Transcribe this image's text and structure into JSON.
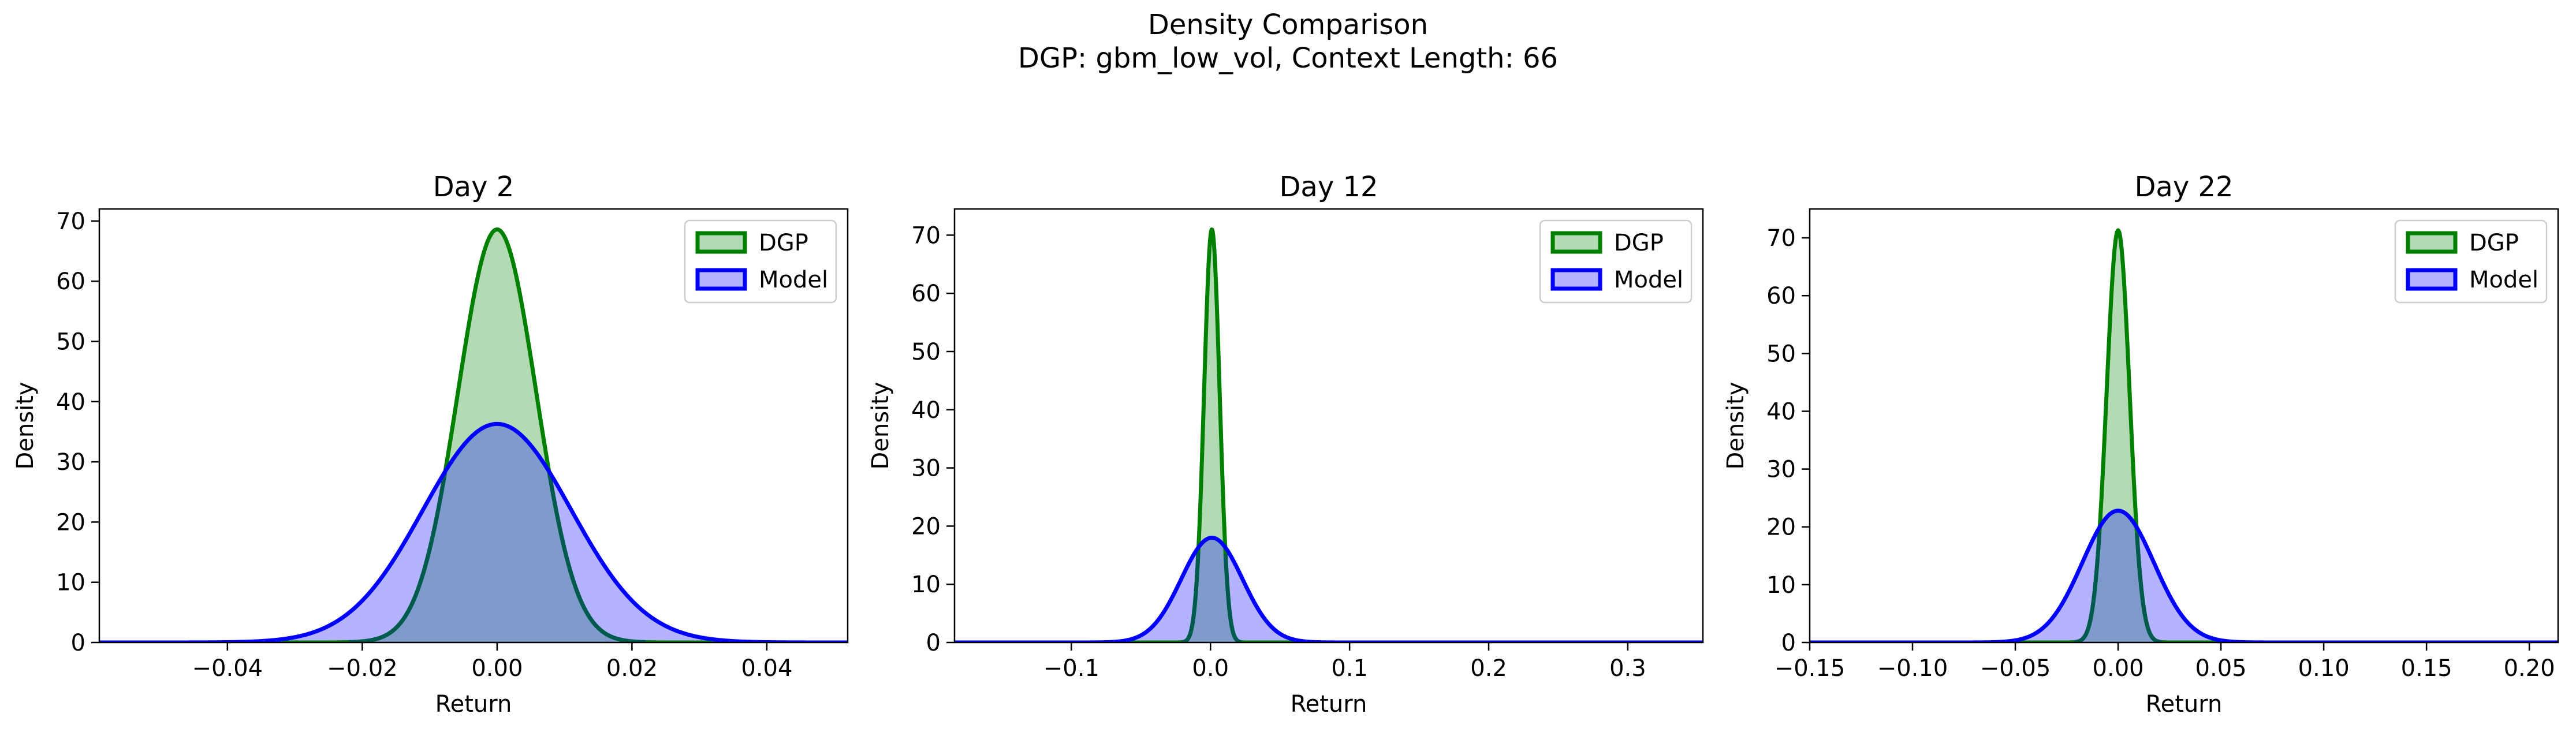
{
  "suptitle": {
    "line1": "Density Comparison",
    "line2": "DGP: gbm_low_vol, Context Length: 66"
  },
  "colors": {
    "dgp_line": "#008000",
    "dgp_fill": "#b3dbb3",
    "model_line": "#0000ff",
    "model_fill": "#b3b3ff",
    "overlap_fill": "#7f9bcb",
    "overlap_line": "#005b4e"
  },
  "chart_data": [
    {
      "type": "area",
      "title": "Day 2",
      "xlabel": "Return",
      "ylabel": "Density",
      "xlim": [
        -0.059,
        0.052
      ],
      "ylim": [
        0,
        72
      ],
      "xticks": [
        -0.04,
        -0.02,
        0.0,
        0.02,
        0.04
      ],
      "xtick_labels": [
        "−0.04",
        "−0.02",
        "0.00",
        "0.02",
        "0.04"
      ],
      "yticks": [
        0,
        10,
        20,
        30,
        40,
        50,
        60,
        70
      ],
      "legend": {
        "position": "top-right",
        "entries": [
          "DGP",
          "Model"
        ]
      },
      "series": [
        {
          "name": "DGP",
          "kind": "normal",
          "mean": 0.0,
          "std": 0.0058,
          "peak": 68.6
        },
        {
          "name": "Model",
          "kind": "normal",
          "mean": 0.0,
          "std": 0.011,
          "peak": 36.3
        }
      ]
    },
    {
      "type": "area",
      "title": "Day 12",
      "xlabel": "Return",
      "ylabel": "Density",
      "xlim": [
        -0.184,
        0.354
      ],
      "ylim": [
        0,
        74.5
      ],
      "xticks": [
        -0.1,
        0.0,
        0.1,
        0.2,
        0.3
      ],
      "xtick_labels": [
        "−0.1",
        "0.0",
        "0.1",
        "0.2",
        "0.3"
      ],
      "yticks": [
        0,
        10,
        20,
        30,
        40,
        50,
        60,
        70
      ],
      "legend": {
        "position": "top-right",
        "entries": [
          "DGP",
          "Model"
        ]
      },
      "series": [
        {
          "name": "DGP",
          "kind": "normal",
          "mean": 0.001,
          "std": 0.0056,
          "peak": 71.0
        },
        {
          "name": "Model",
          "kind": "normal",
          "mean": 0.001,
          "std": 0.022,
          "peak": 18.0
        }
      ]
    },
    {
      "type": "area",
      "title": "Day 22",
      "xlabel": "Return",
      "ylabel": "Density",
      "xlim": [
        -0.15,
        0.214
      ],
      "ylim": [
        0,
        75
      ],
      "xticks": [
        -0.15,
        -0.1,
        -0.05,
        0.0,
        0.05,
        0.1,
        0.15,
        0.2
      ],
      "xtick_labels": [
        "−0.15",
        "−0.10",
        "−0.05",
        "0.00",
        "0.05",
        "0.10",
        "0.15",
        "0.20"
      ],
      "yticks": [
        0,
        10,
        20,
        30,
        40,
        50,
        60,
        70
      ],
      "legend": {
        "position": "top-right",
        "entries": [
          "DGP",
          "Model"
        ]
      },
      "series": [
        {
          "name": "DGP",
          "kind": "normal",
          "mean": 0.0,
          "std": 0.0056,
          "peak": 71.3
        },
        {
          "name": "Model",
          "kind": "normal",
          "mean": 0.0,
          "std": 0.0174,
          "peak": 22.8
        }
      ]
    }
  ]
}
